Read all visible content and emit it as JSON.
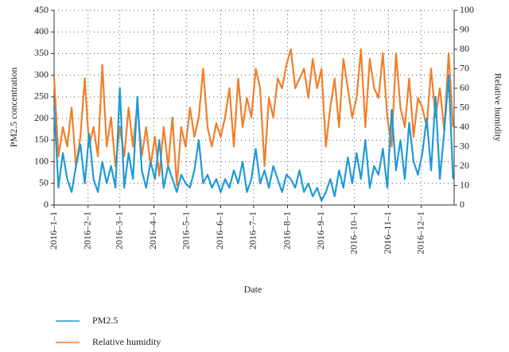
{
  "chart_data": {
    "type": "line",
    "xlabel": "Date",
    "ylabel": "PM2.5 concentration",
    "y2label": "Relative humidity",
    "x": [
      "2016–1–1",
      "2016–1–5",
      "2016–1–9",
      "2016–1–13",
      "2016–1–17",
      "2016–1–21",
      "2016–1–25",
      "2016–1–29",
      "2016–2–2",
      "2016–2–6",
      "2016–2–10",
      "2016–2–14",
      "2016–2–18",
      "2016–2–22",
      "2016–2–26",
      "2016–3–1",
      "2016–3–5",
      "2016–3–9",
      "2016–3–13",
      "2016–3–17",
      "2016–3–21",
      "2016–3–25",
      "2016–3–29",
      "2016–4–2",
      "2016–4–6",
      "2016–4–10",
      "2016–4–14",
      "2016–4–18",
      "2016–4–22",
      "2016–4–26",
      "2016–4–30",
      "2016–5–4",
      "2016–5–8",
      "2016–5–12",
      "2016–5–16",
      "2016–5–20",
      "2016–5–24",
      "2016–5–28",
      "2016–6–1",
      "2016–6–5",
      "2016–6–9",
      "2016–6–13",
      "2016–6–17",
      "2016–6–21",
      "2016–6–25",
      "2016–6–29",
      "2016–7–3",
      "2016–7–7",
      "2016–7–11",
      "2016–7–15",
      "2016–7–19",
      "2016–7–23",
      "2016–7–27",
      "2016–7–31",
      "2016–8–4",
      "2016–8–8",
      "2016–8–12",
      "2016–8–16",
      "2016–8–20",
      "2016–8–24",
      "2016–8–28",
      "2016–9–1",
      "2016–9–5",
      "2016–9–9",
      "2016–9–13",
      "2016–9–17",
      "2016–9–21",
      "2016–9–25",
      "2016–9–29",
      "2016–10–3",
      "2016–10–7",
      "2016–10–11",
      "2016–10–15",
      "2016–10–19",
      "2016–10–23",
      "2016–10–27",
      "2016–10–31",
      "2016–11–4",
      "2016–11–8",
      "2016–11–12",
      "2016–11–16",
      "2016–11–20",
      "2016–11–24",
      "2016–11–28",
      "2016–12–2",
      "2016–12–6",
      "2016–12–10",
      "2016–12–14",
      "2016–12–18",
      "2016–12–22",
      "2016–12–26",
      "2016–12–30"
    ],
    "series": [
      {
        "name": "PM2.5",
        "color": "#1f9ad6",
        "values": [
          230,
          40,
          120,
          60,
          30,
          90,
          140,
          50,
          165,
          60,
          30,
          100,
          50,
          90,
          40,
          270,
          40,
          120,
          60,
          250,
          80,
          40,
          100,
          60,
          150,
          40,
          90,
          60,
          30,
          70,
          50,
          40,
          80,
          150,
          50,
          70,
          40,
          60,
          30,
          60,
          40,
          80,
          50,
          100,
          30,
          60,
          130,
          50,
          80,
          40,
          90,
          60,
          30,
          70,
          60,
          40,
          80,
          30,
          50,
          20,
          40,
          10,
          30,
          60,
          20,
          80,
          40,
          110,
          50,
          120,
          60,
          150,
          40,
          90,
          70,
          130,
          40,
          220,
          80,
          150,
          60,
          190,
          100,
          70,
          120,
          200,
          80,
          250,
          60,
          170,
          300,
          60
        ]
      },
      {
        "name": "Relative humidity",
        "color": "#f07f2a",
        "axis": "y2",
        "values": [
          66,
          25,
          40,
          30,
          50,
          20,
          35,
          65,
          30,
          40,
          25,
          72,
          30,
          45,
          20,
          40,
          25,
          50,
          30,
          52,
          25,
          40,
          20,
          35,
          15,
          40,
          20,
          45,
          10,
          40,
          30,
          50,
          35,
          45,
          70,
          40,
          30,
          42,
          35,
          45,
          60,
          30,
          65,
          40,
          55,
          45,
          70,
          60,
          20,
          55,
          45,
          65,
          60,
          72,
          80,
          60,
          65,
          70,
          55,
          75,
          60,
          70,
          30,
          50,
          65,
          40,
          75,
          60,
          45,
          55,
          80,
          40,
          75,
          60,
          55,
          78,
          45,
          30,
          78,
          50,
          40,
          65,
          35,
          55,
          50,
          40,
          70,
          45,
          60,
          38,
          78,
          40
        ]
      }
    ],
    "xlim": [
      "2016–1–1",
      "2016–12–31"
    ],
    "xticks": [
      "2016–1–1",
      "2016–2–1",
      "2016–3–1",
      "2016–4–1",
      "2016–5–1",
      "2016–6–1",
      "2016–7–1",
      "2016–8–1",
      "2016–9–1",
      "2016–10–1",
      "2016–11–1",
      "2016–12–1"
    ],
    "ylim": [
      0,
      450
    ],
    "yticks": [
      0,
      50,
      100,
      150,
      200,
      250,
      300,
      350,
      400,
      450
    ],
    "y2lim": [
      0,
      100
    ],
    "y2ticks": [
      0,
      10,
      20,
      30,
      40,
      50,
      60,
      70,
      80,
      90,
      100
    ],
    "grid": true,
    "legend": "bottom"
  }
}
